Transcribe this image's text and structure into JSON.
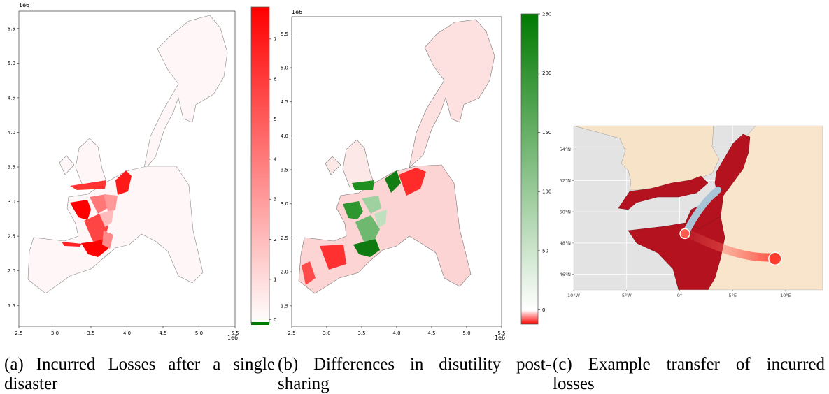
{
  "chart_data": [
    {
      "type": "choropleth",
      "panel": "a",
      "offset_label": "1e6",
      "x_tick_labels": [
        "2.5",
        "3.0",
        "3.5",
        "4.0",
        "4.5",
        "5.0",
        "5.5"
      ],
      "y_tick_labels": [
        "1.5",
        "2.0",
        "2.5",
        "3.0",
        "3.5",
        "4.0",
        "4.5",
        "5.0",
        "5.5"
      ],
      "x_ticks": [
        2.5,
        3.0,
        3.5,
        4.0,
        4.5,
        5.0,
        5.5
      ],
      "y_ticks": [
        1.5,
        2.0,
        2.5,
        3.0,
        3.5,
        4.0,
        4.5,
        5.0,
        5.5
      ],
      "xlim": [
        2.5,
        5.5
      ],
      "ylim": [
        1.2,
        5.75
      ],
      "colorbar": {
        "ticks": [
          0,
          1,
          2,
          3,
          4,
          5,
          6,
          7
        ],
        "tick_labels": [
          "0",
          "1",
          "2",
          "3",
          "4",
          "5",
          "6",
          "7"
        ],
        "range": [
          -0.1,
          7.8
        ],
        "low_color": "#ffffff",
        "high_color": "#ff0000",
        "under_color": "#007a00"
      },
      "caption": "(a) Incurred Losses after a single disaster"
    },
    {
      "type": "choropleth",
      "panel": "b",
      "offset_label": "1e6",
      "x_tick_labels": [
        "2.5",
        "3.0",
        "3.5",
        "4.0",
        "4.5",
        "5.0",
        "5.5"
      ],
      "y_tick_labels": [
        "1.5",
        "2.0",
        "2.5",
        "3.0",
        "3.5",
        "4.0",
        "4.5",
        "5.0",
        "5.5"
      ],
      "x_ticks": [
        2.5,
        3.0,
        3.5,
        4.0,
        4.5,
        5.0,
        5.5
      ],
      "y_ticks": [
        1.5,
        2.0,
        2.5,
        3.0,
        3.5,
        4.0,
        4.5,
        5.0,
        5.5
      ],
      "xlim": [
        2.5,
        5.5
      ],
      "ylim": [
        1.2,
        5.75
      ],
      "colorbar": {
        "ticks": [
          0,
          50,
          100,
          150,
          200,
          250
        ],
        "tick_labels": [
          "0",
          "50",
          "100",
          "150",
          "200",
          "250"
        ],
        "range": [
          -12,
          250
        ],
        "low_color": "#ff0000",
        "mid_color": "#ffffff",
        "high_color": "#007a00"
      },
      "caption": "(b) Differences in disutility post-sharing"
    },
    {
      "type": "map",
      "panel": "c",
      "x_tick_labels": [
        "10°W",
        "5°W",
        "0°",
        "5°E",
        "10°E"
      ],
      "y_tick_labels": [
        "46°N",
        "48°N",
        "50°N",
        "52°N",
        "54°N"
      ],
      "x_ticks": [
        -10,
        -5,
        0,
        5,
        10
      ],
      "y_ticks": [
        46,
        48,
        50,
        52,
        54
      ],
      "xlim": [
        -10,
        13.5
      ],
      "ylim": [
        45,
        55.5
      ],
      "transfer": {
        "from": [
          0.5,
          48.6
        ],
        "to": [
          9.0,
          47.0
        ]
      },
      "caption": "(c) Example transfer of incurred losses"
    }
  ]
}
